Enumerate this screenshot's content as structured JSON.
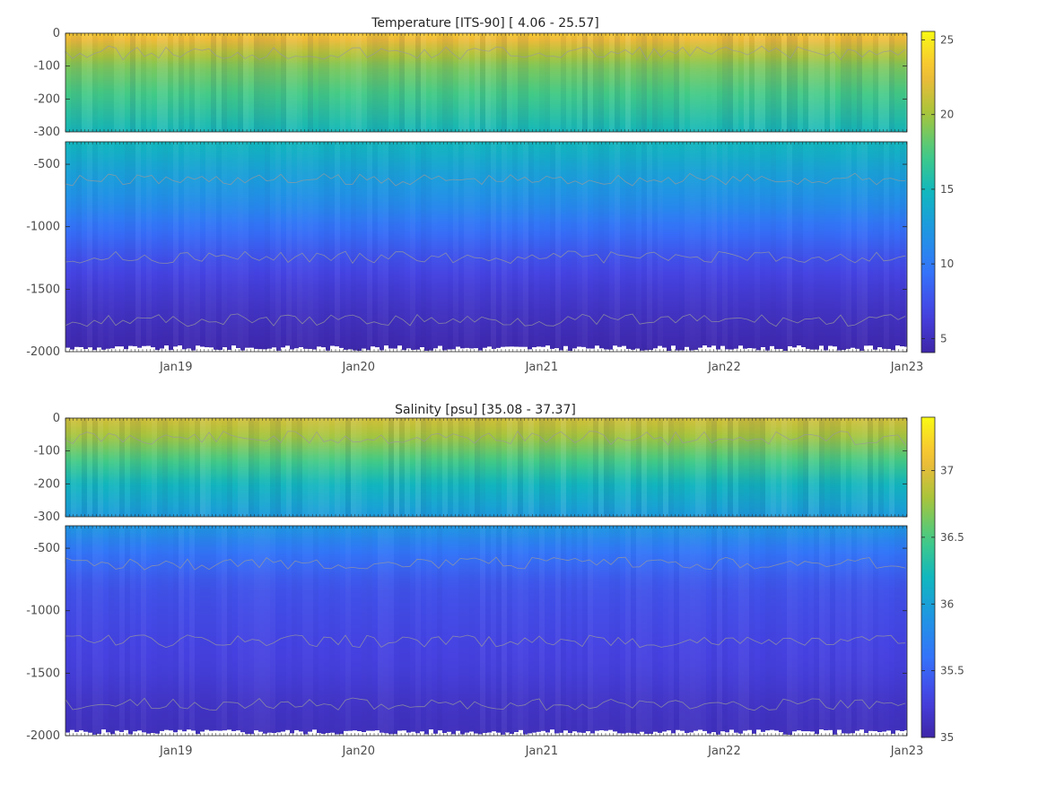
{
  "chart_data": [
    {
      "type": "heatmap",
      "variable": "temperature",
      "title": "Temperature [ITS-90]   [ 4.06 - 25.57]",
      "x_tick_labels": [
        "Jan19",
        "Jan20",
        "Jan21",
        "Jan22",
        "Jan23"
      ],
      "x_tick_dates": [
        "2019-01-01",
        "2020-01-01",
        "2021-01-01",
        "2022-01-01",
        "2023-01-01"
      ],
      "x_range": [
        "2018-05-25",
        "2023-01-01"
      ],
      "upper_panel": {
        "ylim": [
          -300,
          0
        ],
        "y_ticks": [
          0,
          -100,
          -200,
          -300
        ],
        "y_tick_labels": [
          "0",
          "-100",
          "-200",
          "-300"
        ]
      },
      "lower_panel": {
        "ylim": [
          -2000,
          -320
        ],
        "y_ticks": [
          -500,
          -1000,
          -1500,
          -2000
        ],
        "y_tick_labels": [
          "-500",
          "-1000",
          "-1500",
          "-2000"
        ]
      },
      "colorbar": {
        "range": [
          4.06,
          25.57
        ],
        "ticks": [
          5,
          10,
          15,
          20,
          25
        ],
        "tick_labels": [
          "5",
          "10",
          "15",
          "20",
          "25"
        ],
        "colormap": "parula"
      },
      "value_range": [
        4.06,
        25.57
      ],
      "depth_profile": [
        {
          "depth": 0,
          "value": 23.5
        },
        {
          "depth": -50,
          "value": 21.0
        },
        {
          "depth": -100,
          "value": 19.0
        },
        {
          "depth": -200,
          "value": 17.0
        },
        {
          "depth": -300,
          "value": 15.0
        },
        {
          "depth": -500,
          "value": 13.5
        },
        {
          "depth": -800,
          "value": 11.5
        },
        {
          "depth": -1000,
          "value": 9.5
        },
        {
          "depth": -1250,
          "value": 7.5
        },
        {
          "depth": -1500,
          "value": 6.0
        },
        {
          "depth": -1750,
          "value": 5.0
        },
        {
          "depth": -2000,
          "value": 4.2
        }
      ]
    },
    {
      "type": "heatmap",
      "variable": "salinity",
      "title": "Salinity [psu]   [35.08 - 37.37]",
      "x_tick_labels": [
        "Jan19",
        "Jan20",
        "Jan21",
        "Jan22",
        "Jan23"
      ],
      "x_tick_dates": [
        "2019-01-01",
        "2020-01-01",
        "2021-01-01",
        "2022-01-01",
        "2023-01-01"
      ],
      "x_range": [
        "2018-05-25",
        "2023-01-01"
      ],
      "upper_panel": {
        "ylim": [
          -300,
          0
        ],
        "y_ticks": [
          0,
          -100,
          -200,
          -300
        ],
        "y_tick_labels": [
          "0",
          "-100",
          "-200",
          "-300"
        ]
      },
      "lower_panel": {
        "ylim": [
          -2000,
          -320
        ],
        "y_ticks": [
          -500,
          -1000,
          -1500,
          -2000
        ],
        "y_tick_labels": [
          "-500",
          "-1000",
          "-1500",
          "-2000"
        ]
      },
      "colorbar": {
        "range": [
          35.0,
          37.4
        ],
        "ticks": [
          35,
          35.5,
          36,
          36.5,
          37
        ],
        "tick_labels": [
          "35",
          "35.5",
          "36",
          "36.5",
          "37"
        ],
        "colormap": "parula"
      },
      "value_range": [
        35.08,
        37.37
      ],
      "depth_profile": [
        {
          "depth": 0,
          "value": 36.95
        },
        {
          "depth": -50,
          "value": 36.8
        },
        {
          "depth": -100,
          "value": 36.6
        },
        {
          "depth": -200,
          "value": 36.2
        },
        {
          "depth": -300,
          "value": 35.95
        },
        {
          "depth": -500,
          "value": 35.65
        },
        {
          "depth": -800,
          "value": 35.4
        },
        {
          "depth": -1000,
          "value": 35.35
        },
        {
          "depth": -1250,
          "value": 35.3
        },
        {
          "depth": -1500,
          "value": 35.25
        },
        {
          "depth": -1750,
          "value": 35.15
        },
        {
          "depth": -2000,
          "value": 35.1
        }
      ]
    }
  ]
}
